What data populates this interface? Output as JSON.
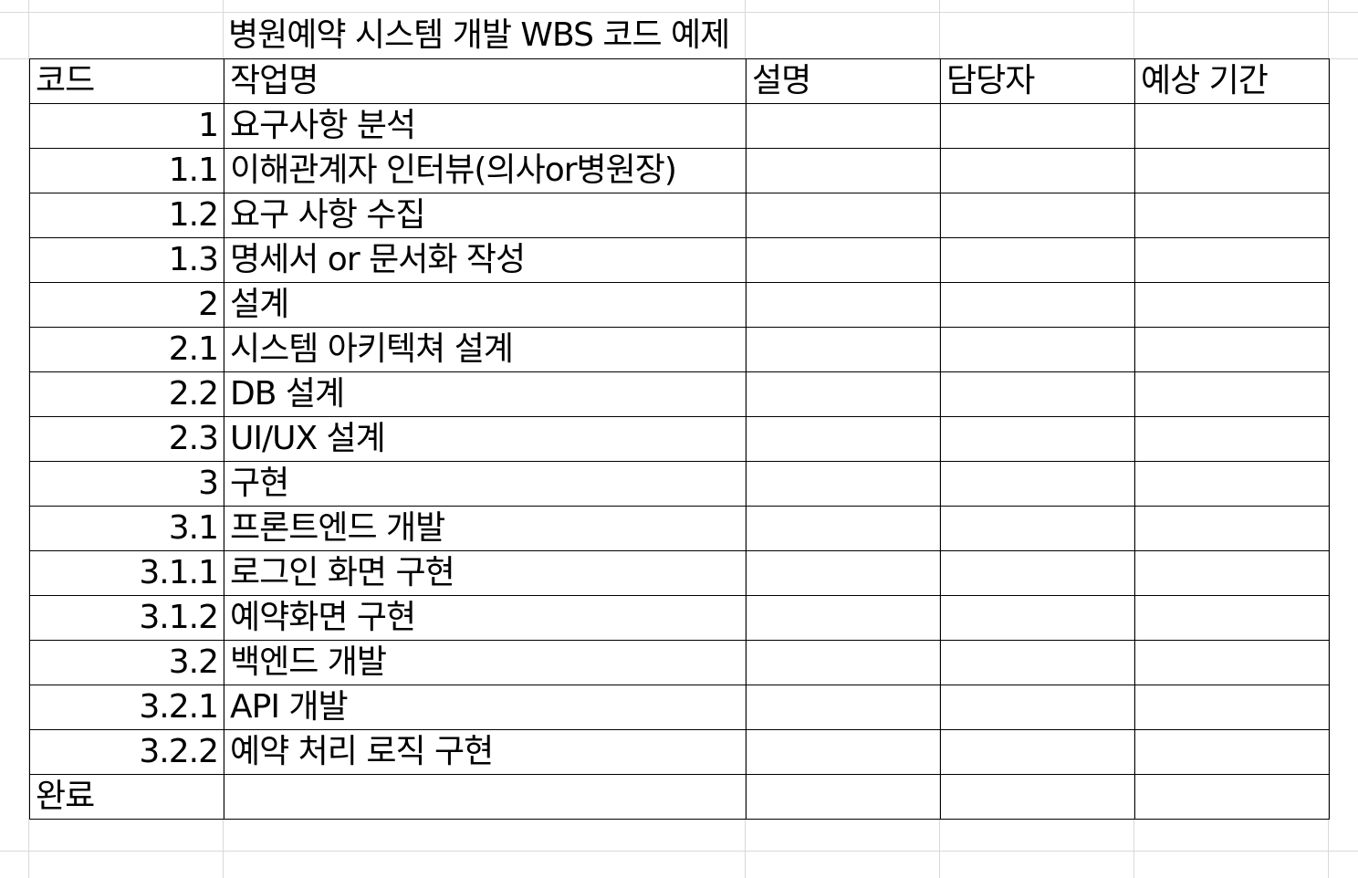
{
  "sheet": {
    "title": "병원예약 시스템 개발 WBS 코드 예제",
    "headers": {
      "code": "코드",
      "task": "작업명",
      "description": "설명",
      "owner": "담당자",
      "duration": "예상 기간"
    },
    "rows": [
      {
        "code": "1",
        "task": "요구사항 분석"
      },
      {
        "code": "1.1",
        "task": "이해관계자 인터뷰(의사or병원장)"
      },
      {
        "code": "1.2",
        "task": "요구 사항 수집"
      },
      {
        "code": "1.3",
        "task": "명세서 or 문서화 작성"
      },
      {
        "code": "2",
        "task": "설계"
      },
      {
        "code": "2.1",
        "task": "시스템 아키텍쳐 설계"
      },
      {
        "code": "2.2",
        "task": "DB 설계"
      },
      {
        "code": "2.3",
        "task": "UI/UX 설계"
      },
      {
        "code": "3",
        "task": "구현"
      },
      {
        "code": "3.1",
        "task": "프론트엔드 개발"
      },
      {
        "code": "3.1.1",
        "task": "로그인 화면 구현"
      },
      {
        "code": "3.1.2",
        "task": "예약화면 구현"
      },
      {
        "code": "3.2",
        "task": "백엔드 개발"
      },
      {
        "code": "3.2.1",
        "task": "API 개발"
      },
      {
        "code": "3.2.2",
        "task": "예약 처리 로직 구현"
      }
    ],
    "footer": {
      "code": "완료"
    }
  }
}
